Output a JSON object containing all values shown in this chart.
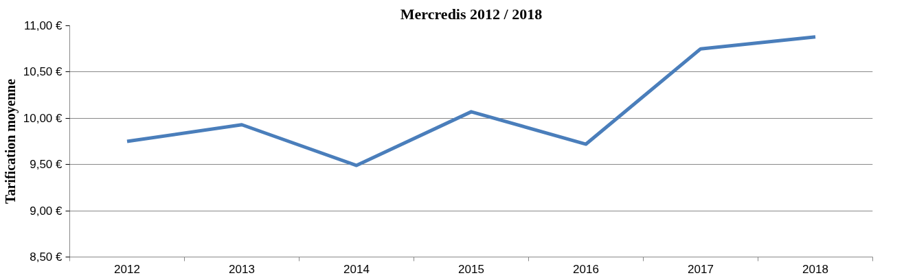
{
  "chart_data": {
    "type": "line",
    "title": "Mercredis 2012 / 2018",
    "ylabel": "Tarification moyenne",
    "categories": [
      "2012",
      "2013",
      "2014",
      "2015",
      "2016",
      "2017",
      "2018"
    ],
    "series": [
      {
        "color": "#4a7ebb",
        "values": [
          9.75,
          9.93,
          9.49,
          10.07,
          9.72,
          10.75,
          10.88
        ]
      }
    ],
    "ylim": [
      8.5,
      11.0
    ],
    "yticks": [
      {
        "value": 8.5,
        "label": "8,50 €"
      },
      {
        "value": 9.0,
        "label": "9,00 €"
      },
      {
        "value": 9.5,
        "label": "9,50 €"
      },
      {
        "value": 10.0,
        "label": "10,00 €"
      },
      {
        "value": 10.5,
        "label": "10,50 €"
      },
      {
        "value": 11.0,
        "label": "11,00 €"
      }
    ],
    "grid": "y",
    "marker": "none",
    "line_style": "solid"
  }
}
